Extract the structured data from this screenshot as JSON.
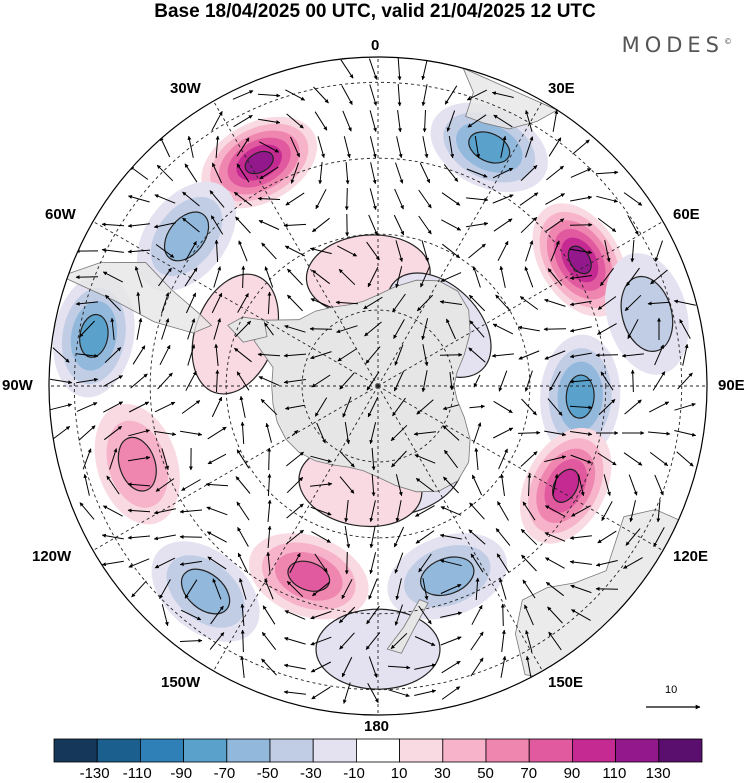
{
  "title": "Base 18/04/2025 00 UTC, valid 21/04/2025 12 UTC",
  "brand": "MODES",
  "brand_mark": "©",
  "longitude_labels": {
    "north": "0",
    "ne": "30E",
    "e1": "60E",
    "east": "90E",
    "e2": "120E",
    "se": "150E",
    "south": "180",
    "sw": "150W",
    "w2": "120W",
    "west": "90W",
    "w1": "60W",
    "nw": "30W"
  },
  "vector_reference": "10",
  "colorbar": {
    "colors": [
      "#15385a",
      "#1b5f8e",
      "#2f80b7",
      "#5aa1cc",
      "#92b8dc",
      "#c0cde5",
      "#e4e2f0",
      "#ffffff",
      "#f9d9e2",
      "#f6b3c9",
      "#ef86b0",
      "#e15aa0",
      "#c52a93",
      "#93188b",
      "#5a0f6e"
    ],
    "ticks": [
      "-130",
      "-110",
      "-90",
      "-70",
      "-50",
      "-30",
      "-10",
      "10",
      "30",
      "50",
      "70",
      "90",
      "110",
      "130"
    ]
  },
  "map": {
    "land_color": "#e6e6e6",
    "anomalies": [
      {
        "lon": -28,
        "lat": -40,
        "value": 118
      },
      {
        "lon": 25,
        "lat": -38,
        "value": -82
      },
      {
        "lon": 58,
        "lat": -43,
        "value": 110
      },
      {
        "lon": -52,
        "lat": -42,
        "value": -68
      },
      {
        "lon": -80,
        "lat": -33,
        "value": -72
      },
      {
        "lon": 93,
        "lat": -50,
        "value": -70
      },
      {
        "lon": 118,
        "lat": -48,
        "value": 92
      },
      {
        "lon": -108,
        "lat": -40,
        "value": 60
      },
      {
        "lon": -140,
        "lat": -37,
        "value": -65
      },
      {
        "lon": -160,
        "lat": -50,
        "value": 85
      },
      {
        "lon": 160,
        "lat": -50,
        "value": -62
      },
      {
        "lon": -5,
        "lat": -68,
        "value": 28
      },
      {
        "lon": 45,
        "lat": -73,
        "value": -22
      },
      {
        "lon": -70,
        "lat": -60,
        "value": 25
      },
      {
        "lon": 165,
        "lat": -72,
        "value": -25
      },
      {
        "lon": -170,
        "lat": -70,
        "value": 22
      },
      {
        "lon": 75,
        "lat": -35,
        "value": -32
      },
      {
        "lon": 180,
        "lat": -38,
        "value": -20
      }
    ]
  }
}
